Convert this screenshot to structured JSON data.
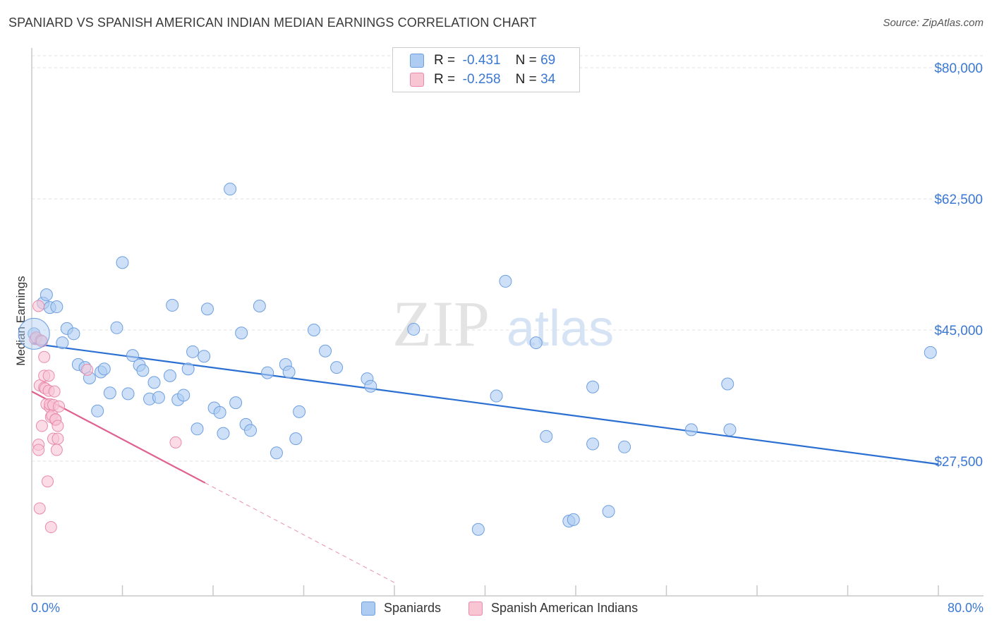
{
  "title": "SPANIARD VS SPANISH AMERICAN INDIAN MEDIAN EARNINGS CORRELATION CHART",
  "source": "Source: ZipAtlas.com",
  "watermark": {
    "zip": "ZIP",
    "atlas": "atlas"
  },
  "legend_stats": [
    {
      "r_label": "R =",
      "r_value": "-0.431",
      "n_label": "N =",
      "n_value": "69",
      "color": "#aecbf2",
      "border": "#6d9fe0"
    },
    {
      "r_label": "R =",
      "r_value": "-0.258",
      "n_label": "N =",
      "n_value": "34",
      "color": "#f8c5d5",
      "border": "#e98aab"
    }
  ],
  "chart_data": {
    "type": "scatter",
    "xlabel": "",
    "ylabel": "Median Earnings",
    "xlim": [
      0,
      80
    ],
    "ylim": [
      11000,
      82000
    ],
    "x_tick_labels": [
      "0.0%",
      "80.0%"
    ],
    "y_ticks": [
      27500,
      45000,
      62500,
      80000
    ],
    "y_tick_labels": [
      "$27,500",
      "$45,000",
      "$62,500",
      "$80,000"
    ],
    "grid": true,
    "legend_position": "bottom-center",
    "series": [
      {
        "name": "Spaniards",
        "color": "#aecbf2",
        "stroke": "#6d9fe0",
        "line_color": "#2a6fd1",
        "trend": {
          "x": [
            0,
            80
          ],
          "y": [
            43200,
            27100
          ]
        },
        "points": [
          [
            0.2,
            44500
          ],
          [
            1.0,
            48600
          ],
          [
            1.3,
            49700
          ],
          [
            1.6,
            48000
          ],
          [
            2.2,
            48100
          ],
          [
            2.7,
            43300
          ],
          [
            3.1,
            45200
          ],
          [
            3.7,
            44500
          ],
          [
            4.1,
            40400
          ],
          [
            4.7,
            40000
          ],
          [
            5.1,
            38600
          ],
          [
            5.8,
            34200
          ],
          [
            6.1,
            39400
          ],
          [
            6.4,
            39800
          ],
          [
            6.9,
            36600
          ],
          [
            7.5,
            45300
          ],
          [
            8.0,
            54000
          ],
          [
            8.5,
            36500
          ],
          [
            8.9,
            41600
          ],
          [
            9.5,
            40300
          ],
          [
            9.8,
            39600
          ],
          [
            10.4,
            35800
          ],
          [
            10.8,
            38000
          ],
          [
            11.2,
            36000
          ],
          [
            12.2,
            38900
          ],
          [
            12.4,
            48300
          ],
          [
            12.9,
            35700
          ],
          [
            13.4,
            36300
          ],
          [
            13.8,
            39800
          ],
          [
            14.2,
            42100
          ],
          [
            14.6,
            31800
          ],
          [
            15.2,
            41500
          ],
          [
            15.5,
            47800
          ],
          [
            16.1,
            34600
          ],
          [
            16.6,
            34000
          ],
          [
            16.9,
            31200
          ],
          [
            17.5,
            63800
          ],
          [
            18.0,
            35300
          ],
          [
            18.5,
            44600
          ],
          [
            18.9,
            32400
          ],
          [
            19.3,
            31600
          ],
          [
            20.1,
            48200
          ],
          [
            20.8,
            39300
          ],
          [
            21.6,
            28600
          ],
          [
            22.4,
            40400
          ],
          [
            22.7,
            39400
          ],
          [
            23.3,
            30500
          ],
          [
            23.6,
            34100
          ],
          [
            24.9,
            45000
          ],
          [
            25.9,
            42200
          ],
          [
            26.9,
            40000
          ],
          [
            29.6,
            38500
          ],
          [
            29.9,
            37500
          ],
          [
            33.7,
            45100
          ],
          [
            39.4,
            18400
          ],
          [
            41.0,
            36200
          ],
          [
            41.8,
            51500
          ],
          [
            44.5,
            43300
          ],
          [
            45.4,
            30800
          ],
          [
            47.4,
            19500
          ],
          [
            47.8,
            19700
          ],
          [
            49.5,
            29800
          ],
          [
            49.5,
            37400
          ],
          [
            50.9,
            20800
          ],
          [
            52.3,
            29400
          ],
          [
            58.2,
            31700
          ],
          [
            61.4,
            37800
          ],
          [
            61.6,
            31700
          ],
          [
            79.3,
            42000
          ]
        ]
      },
      {
        "name": "Spanish American Indians",
        "color": "#f8c5d5",
        "stroke": "#e98aab",
        "line_color": "#e0608f",
        "trend": {
          "x": [
            0,
            15.3
          ],
          "y": [
            36800,
            24600
          ]
        },
        "trend_dashed": {
          "x": [
            15.3,
            32.0
          ],
          "y": [
            24600,
            11300
          ]
        },
        "points": [
          [
            0.3,
            43800
          ],
          [
            0.4,
            44000
          ],
          [
            0.6,
            48200
          ],
          [
            0.6,
            29700
          ],
          [
            0.6,
            29000
          ],
          [
            0.7,
            21200
          ],
          [
            0.7,
            37600
          ],
          [
            0.8,
            43600
          ],
          [
            0.9,
            43500
          ],
          [
            0.9,
            32200
          ],
          [
            1.1,
            37300
          ],
          [
            1.1,
            38900
          ],
          [
            1.1,
            41400
          ],
          [
            1.2,
            37200
          ],
          [
            1.3,
            35100
          ],
          [
            1.4,
            24800
          ],
          [
            1.5,
            38900
          ],
          [
            1.5,
            36900
          ],
          [
            1.6,
            34700
          ],
          [
            1.6,
            35100
          ],
          [
            1.7,
            33400
          ],
          [
            1.7,
            18700
          ],
          [
            1.8,
            33600
          ],
          [
            1.9,
            30500
          ],
          [
            1.9,
            35000
          ],
          [
            2.0,
            36800
          ],
          [
            2.1,
            33000
          ],
          [
            2.1,
            33100
          ],
          [
            2.2,
            29000
          ],
          [
            2.3,
            30500
          ],
          [
            2.3,
            32200
          ],
          [
            2.4,
            34800
          ],
          [
            4.9,
            39700
          ],
          [
            12.7,
            30000
          ]
        ]
      }
    ]
  }
}
